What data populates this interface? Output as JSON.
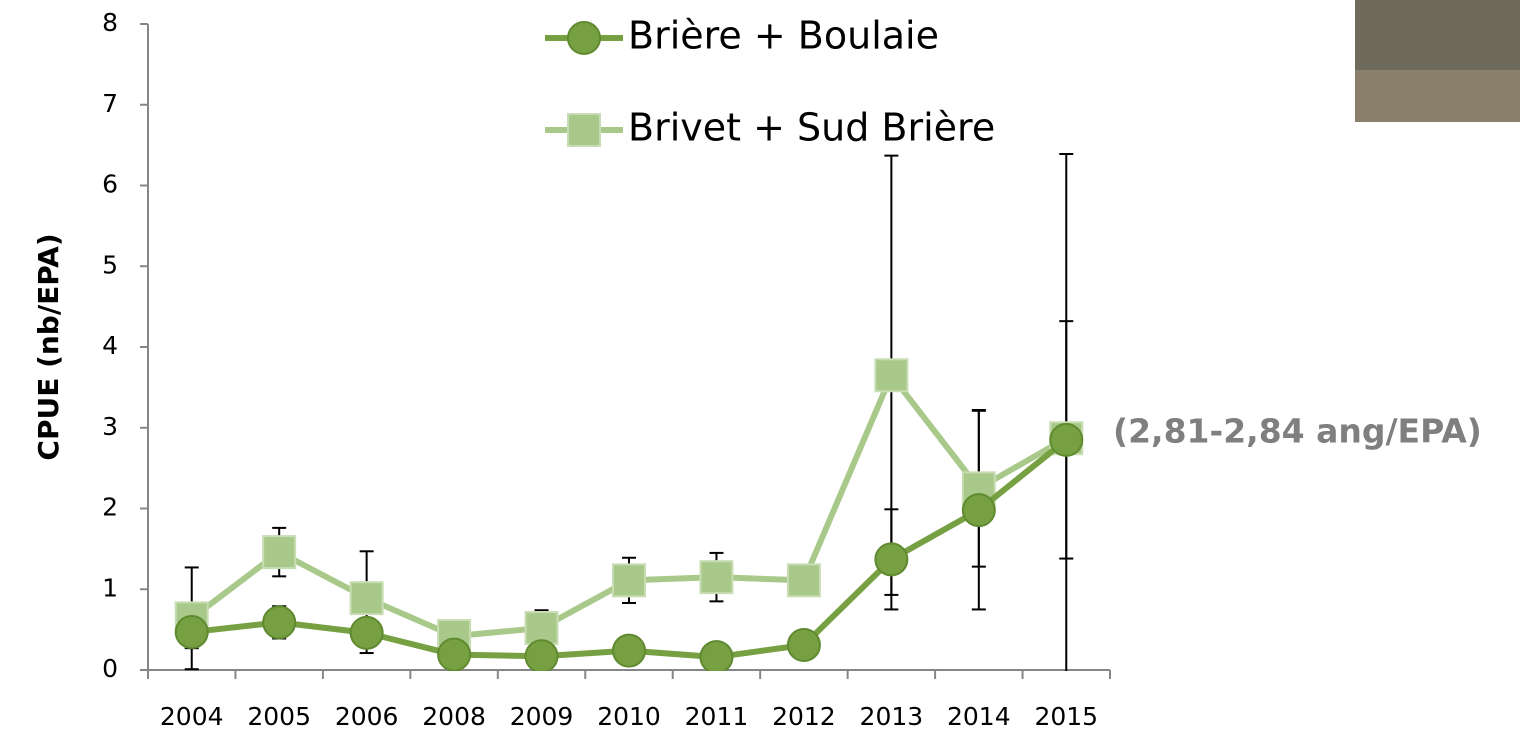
{
  "chart_data": {
    "type": "line",
    "y_label": "CPUE (nb/EPA)",
    "annotation": "(2,81-2,84 ang/EPA)",
    "categories": [
      "2004",
      "2005",
      "2006",
      "2008",
      "2009",
      "2010",
      "2011",
      "2012",
      "2013",
      "2014",
      "2015"
    ],
    "series": [
      {
        "name": "Brière + Boulaie",
        "color": "#77a043",
        "marker": "circle",
        "values": [
          0.47,
          0.59,
          0.46,
          0.19,
          0.17,
          0.24,
          0.16,
          0.31,
          1.37,
          1.98,
          2.85
        ],
        "errors": [
          0.2,
          0.2,
          0.25,
          0.05,
          0.05,
          0.05,
          0.05,
          0.05,
          0.62,
          1.23,
          1.47
        ]
      },
      {
        "name": "Brivet + Sud Brière",
        "color": "#a9c98a",
        "marker": "square",
        "values": [
          0.64,
          1.46,
          0.89,
          0.42,
          0.52,
          1.11,
          1.15,
          1.11,
          3.65,
          2.25,
          2.87
        ],
        "errors": [
          0.63,
          0.3,
          0.58,
          0.1,
          0.22,
          0.28,
          0.3,
          0.1,
          2.72,
          0.97,
          3.52
        ]
      }
    ],
    "ylim": [
      0,
      8
    ],
    "yticks": [
      0,
      1,
      2,
      3,
      4,
      5,
      6,
      7,
      8
    ],
    "grid": false,
    "legend": "top"
  }
}
